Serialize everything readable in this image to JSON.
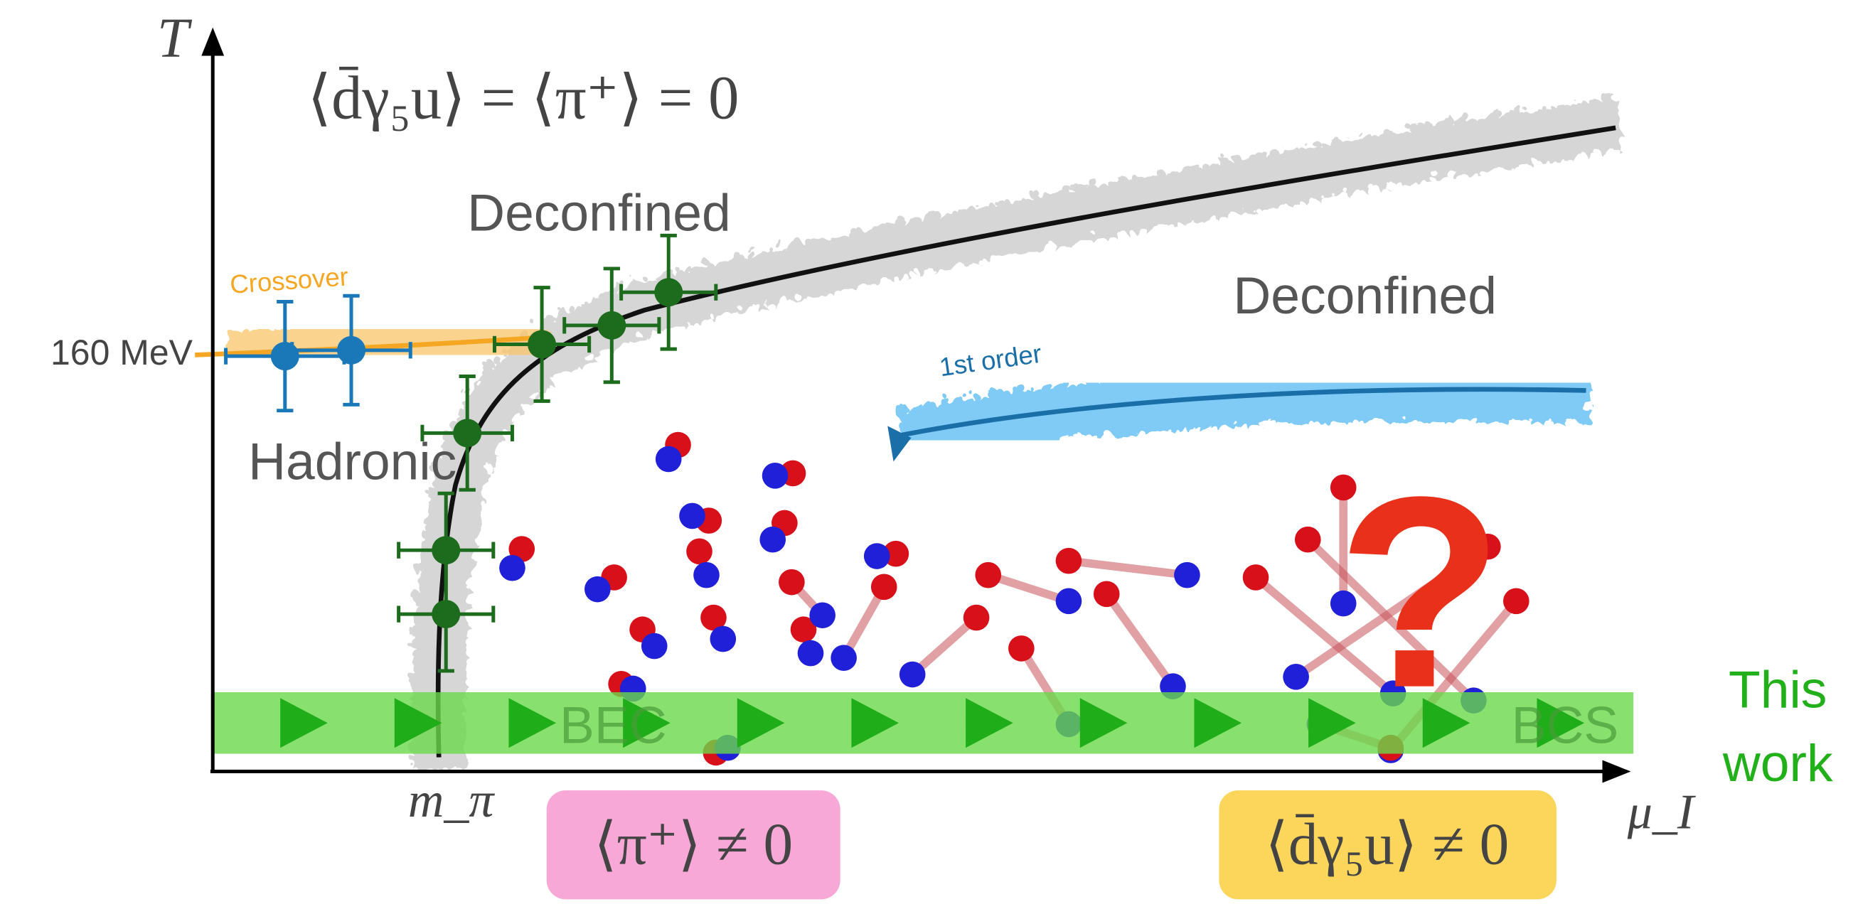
{
  "axes": {
    "y_label": "T",
    "x_label": "μ_I",
    "y_mark": "160 MeV",
    "x_mark": "m_π"
  },
  "top_condition": "⟨d̄γ₅u⟩ = ⟨π⁺⟩ = 0",
  "regions": {
    "deconfined_left": "Deconfined",
    "deconfined_right": "Deconfined",
    "hadronic": "Hadronic",
    "bec": "BEC",
    "bcs": "BCS"
  },
  "transitions": {
    "crossover": "Crossover",
    "first_order": "1st order"
  },
  "this_work": [
    "This",
    "work"
  ],
  "condensates": {
    "pion": "⟨π⁺⟩ ≠ 0",
    "quark": "⟨d̄γ₅u⟩ ≠ 0"
  },
  "question": "?"
}
